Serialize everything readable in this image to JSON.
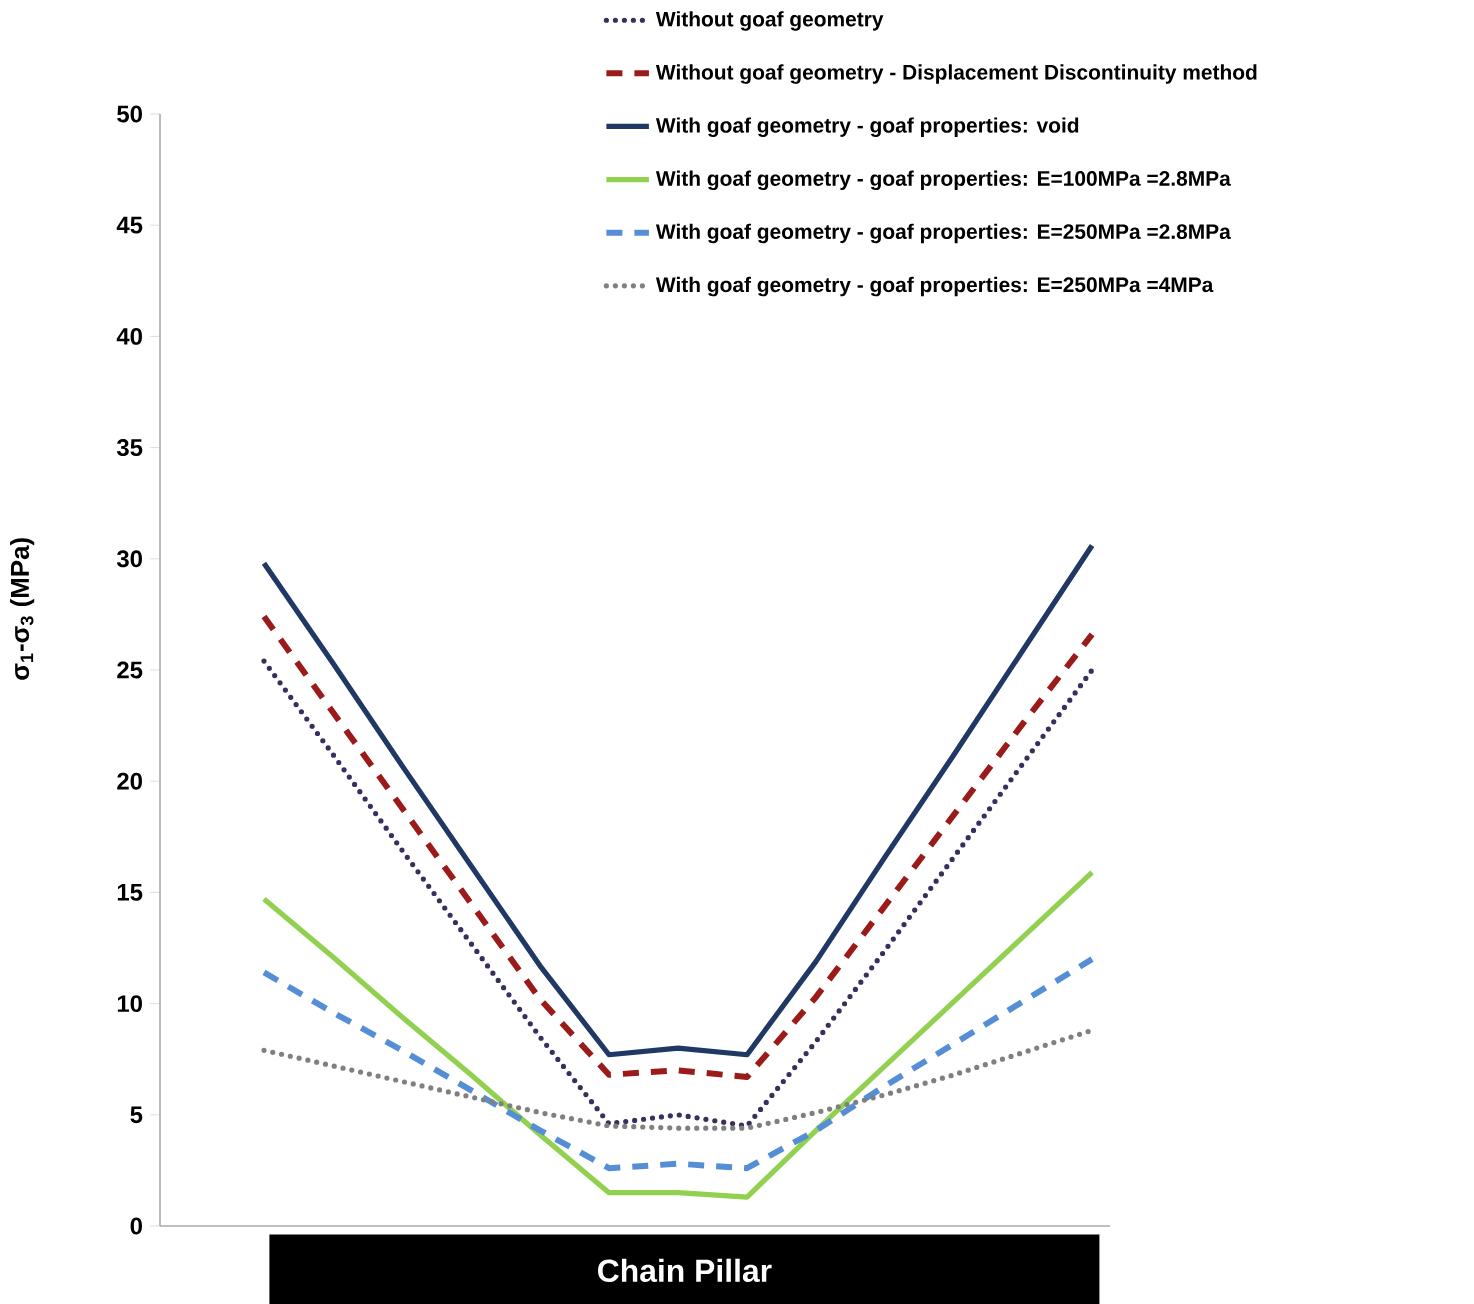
{
  "chart_data": {
    "type": "line",
    "xlabel": "Chain Pillar",
    "ylabel": "σ$_{1}$-σ$_{3}$ (MPa)",
    "categories": [
      null,
      null,
      null,
      null,
      null,
      null,
      null,
      null,
      null,
      null,
      null,
      null,
      null
    ],
    "ylim": [
      0,
      50
    ],
    "yticks": [
      0,
      5,
      10,
      15,
      20,
      25,
      30,
      35,
      40,
      45,
      50
    ],
    "tick_labels": "y",
    "grid": false,
    "legend": "top",
    "series": [
      {
        "name": "Without goaf geometry",
        "color": "#3b2d5e",
        "line_style": "dotted",
        "values": [
          25.4,
          21.2,
          16.9,
          12.7,
          8.5,
          4.6,
          5.0,
          4.5,
          8.3,
          12.4,
          16.6,
          20.8,
          25.0
        ]
      },
      {
        "name": "Without goaf geometry - Displacement Discontinuity method",
        "color": "#9b1b1b",
        "line_style": "dashed",
        "values": [
          27.4,
          23.1,
          18.8,
          14.5,
          10.2,
          6.8,
          7.0,
          6.7,
          10.3,
          14.4,
          18.5,
          22.6,
          26.6
        ]
      },
      {
        "name": "With goaf geometry - goaf properties: void",
        "color": "#1f3864",
        "line_style": "solid",
        "values": [
          29.8,
          25.3,
          20.7,
          16.2,
          11.7,
          7.7,
          8.0,
          7.7,
          11.9,
          16.6,
          21.2,
          25.9,
          30.6
        ]
      },
      {
        "name": "With goaf geometry - goaf properties: E=100MPa =2.8MPa",
        "color": "#92d050",
        "line_style": "solid",
        "values": [
          14.7,
          12.1,
          9.4,
          6.8,
          4.1,
          1.5,
          1.5,
          1.3,
          4.3,
          7.2,
          10.1,
          13.0,
          15.9
        ]
      },
      {
        "name": "With goaf geometry - goaf properties: E=250MPa =2.8MPa",
        "color": "#558ed5",
        "line_style": "dashed",
        "values": [
          11.4,
          9.6,
          7.9,
          6.1,
          4.3,
          2.6,
          2.8,
          2.6,
          4.3,
          6.3,
          8.2,
          10.1,
          12.0
        ]
      },
      {
        "name": "With goaf geometry - goaf properties: E=250MPa =4MPa",
        "color": "#808080",
        "line_style": "dotted",
        "values": [
          7.9,
          7.2,
          6.5,
          5.8,
          5.1,
          4.5,
          4.4,
          4.4,
          5.1,
          5.9,
          6.8,
          7.8,
          8.8
        ]
      }
    ]
  }
}
